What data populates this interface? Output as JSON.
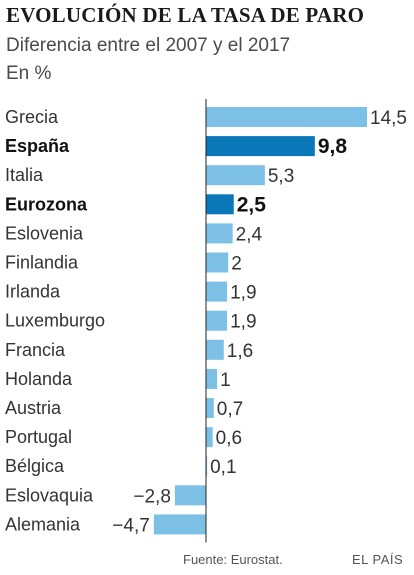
{
  "title": "EVOLUCIÓN DE LA TASA DE PARO",
  "subtitle": "Diferencia entre el 2007 y el 2017",
  "units": "En %",
  "source": "Fuente: Eurostat.",
  "brand": "EL PAÍS",
  "colors": {
    "bar": "#7cc0e6",
    "highlight": "#0a78b8",
    "axis": "#222222",
    "text": "#333333"
  },
  "chart_data": {
    "type": "bar",
    "orientation": "horizontal",
    "title": "EVOLUCIÓN DE LA TASA DE PARO",
    "subtitle": "Diferencia entre el 2007 y el 2017",
    "unit": "En %",
    "categories": [
      "Grecia",
      "España",
      "Italia",
      "Eurozona",
      "Eslovenia",
      "Finlandia",
      "Irlanda",
      "Luxemburgo",
      "Francia",
      "Holanda",
      "Austria",
      "Portugal",
      "Bélgica",
      "Eslovaquia",
      "Alemania"
    ],
    "values": [
      14.5,
      9.8,
      5.3,
      2.5,
      2.4,
      2,
      1.9,
      1.9,
      1.6,
      1,
      0.7,
      0.6,
      0.1,
      -2.8,
      -4.7
    ],
    "value_labels": [
      "14,5",
      "9,8",
      "5,3",
      "2,5",
      "2,4",
      "2",
      "1,9",
      "1,9",
      "1,6",
      "1",
      "0,7",
      "0,6",
      "0,1",
      "−2,8",
      "−4,7"
    ],
    "highlighted": [
      "España",
      "Eurozona"
    ],
    "xlim": [
      -4.7,
      14.5
    ],
    "grid": false,
    "axis_ticks": false
  }
}
